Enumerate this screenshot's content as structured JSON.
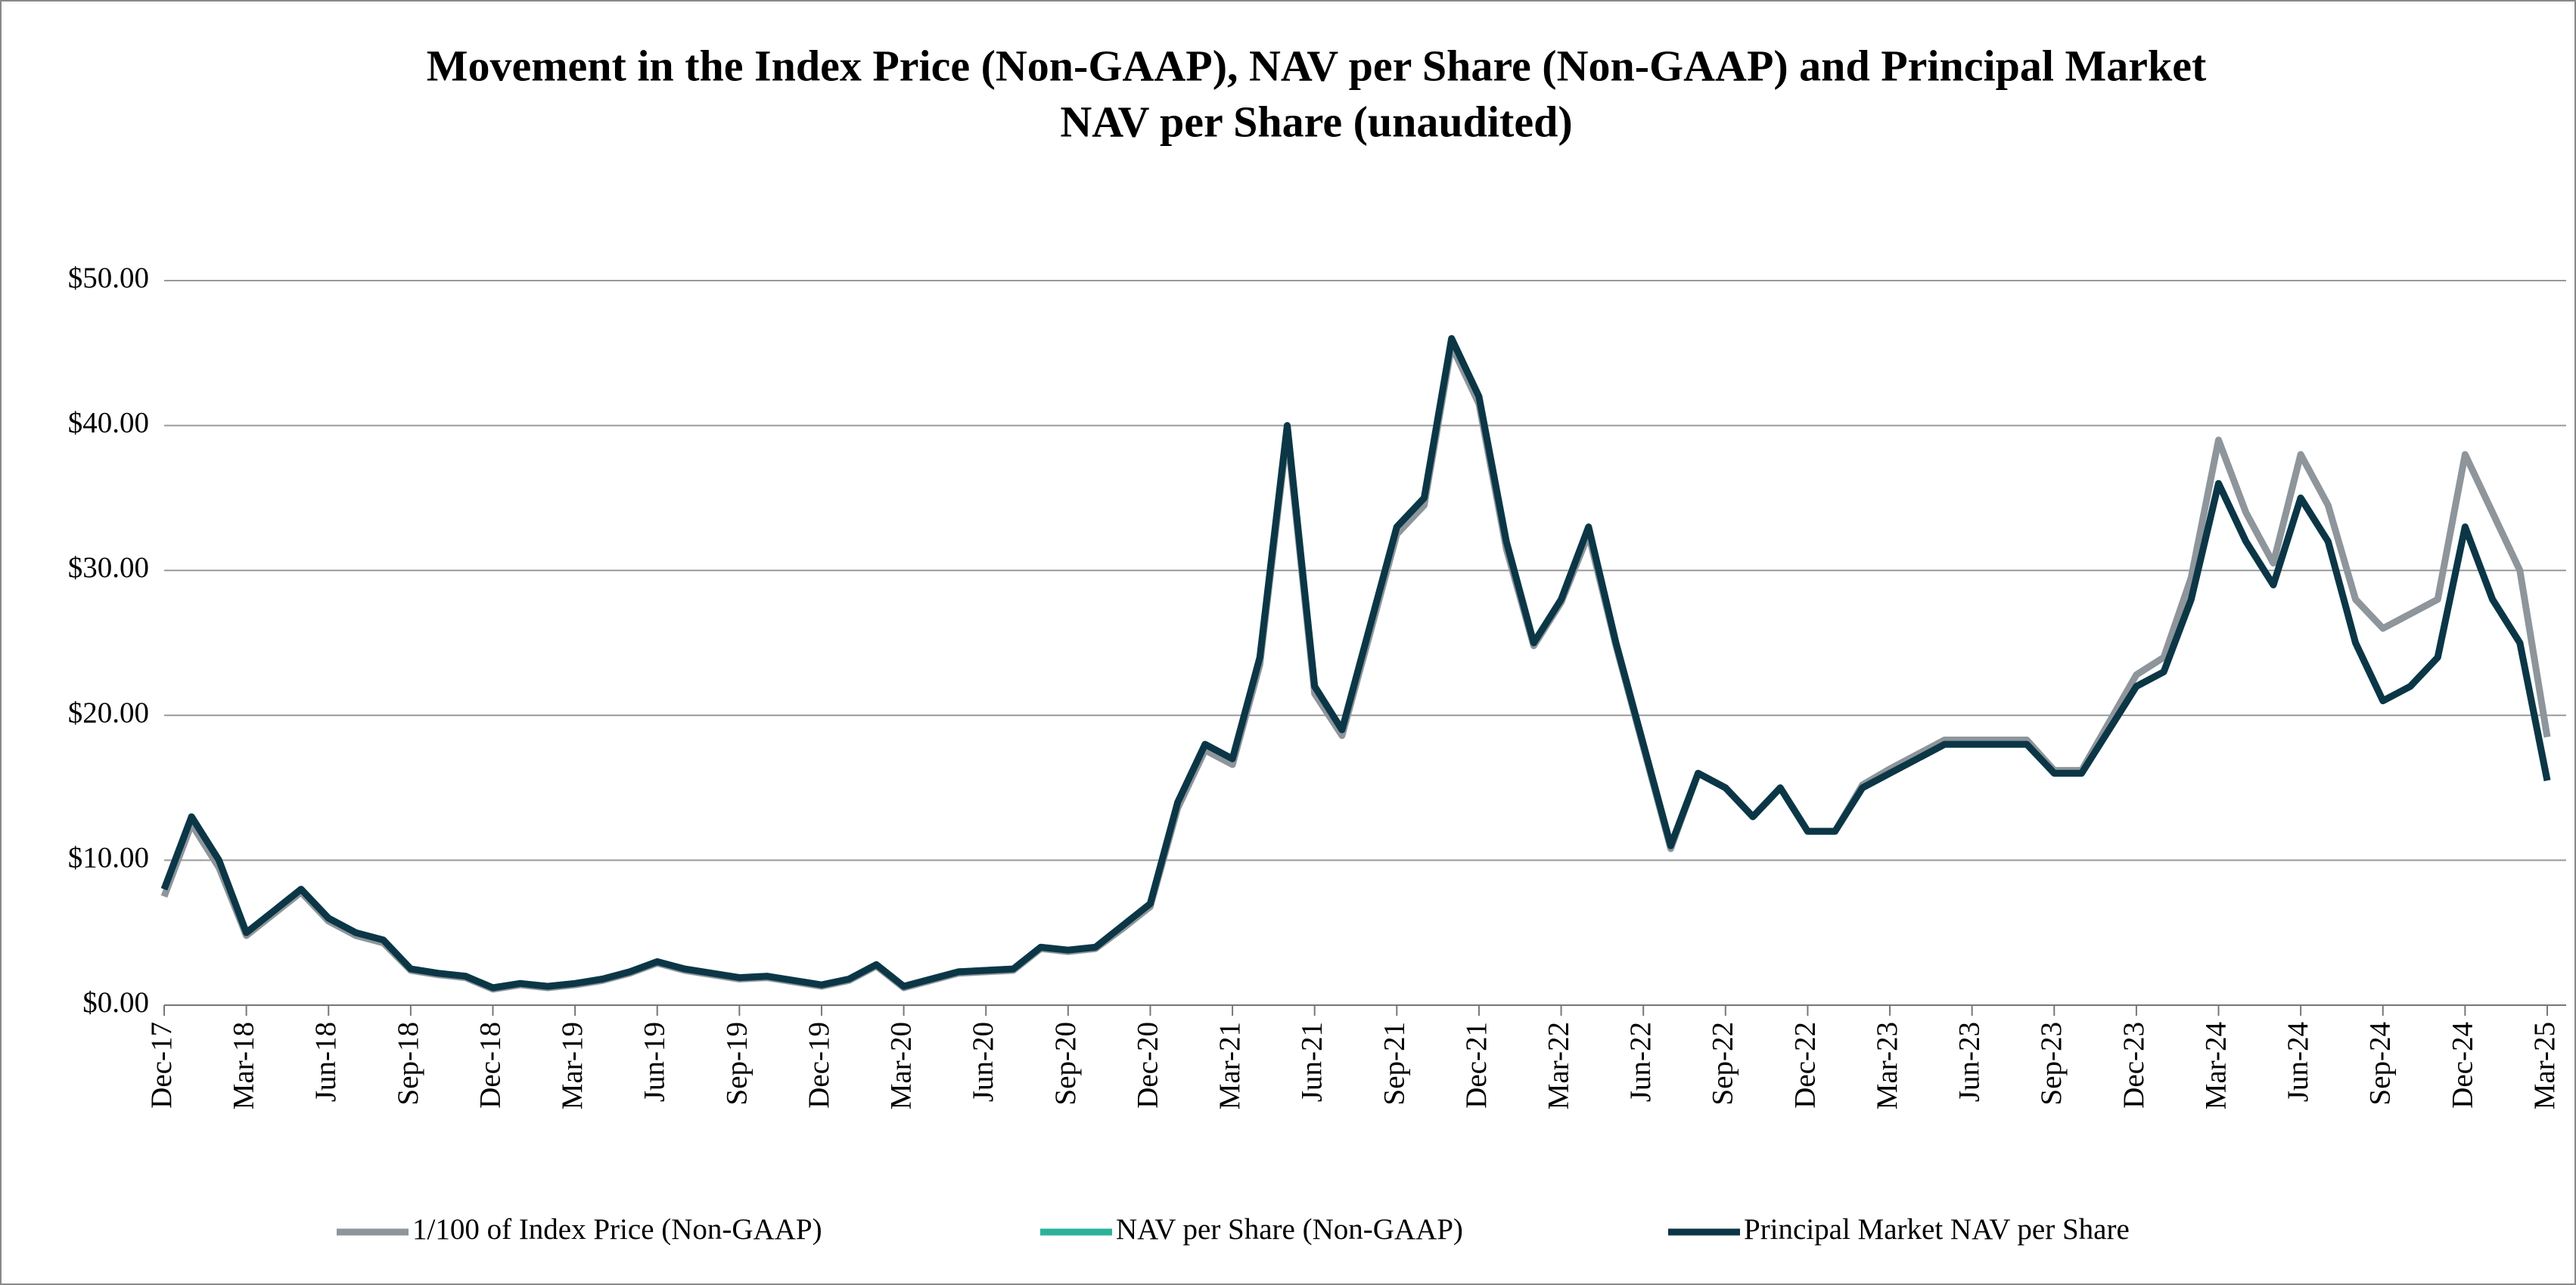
{
  "chart_data": {
    "type": "line",
    "title": "Movement in the Index Price (Non-GAAP), NAV per Share (Non-GAAP) and Principal Market",
    "subtitle": "NAV per Share (unaudited)",
    "categories": [
      "Dec-17",
      null,
      null,
      "Mar-18",
      null,
      null,
      "Jun-18",
      null,
      null,
      "Sep-18",
      null,
      null,
      "Dec-18",
      null,
      null,
      "Mar-19",
      null,
      null,
      "Jun-19",
      null,
      null,
      "Sep-19",
      null,
      null,
      "Dec-19",
      null,
      null,
      "Mar-20",
      null,
      null,
      "Jun-20",
      null,
      null,
      "Sep-20",
      null,
      null,
      "Dec-20",
      null,
      null,
      "Mar-21",
      null,
      null,
      "Jun-21",
      null,
      null,
      "Sep-21",
      null,
      null,
      "Dec-21",
      null,
      null,
      "Mar-22",
      null,
      null,
      "Jun-22",
      null,
      null,
      "Sep-22",
      null,
      null,
      "Dec-22",
      null,
      null,
      "Mar-23",
      null,
      null,
      "Jun-23",
      null,
      null,
      "Sep-23",
      null,
      null,
      "Dec-23",
      null,
      null,
      "Mar-24",
      null,
      null,
      "Jun-24",
      null,
      null,
      "Sep-24",
      null,
      null,
      "Dec-24",
      null,
      null,
      "Mar-25"
    ],
    "series": [
      {
        "name": "1/100 of Index Price (Non-GAAP)",
        "color": "#8e959b",
        "values": [
          7.5,
          12.5,
          9.5,
          4.8,
          6.3,
          7.8,
          5.8,
          4.8,
          4.3,
          2.4,
          2.1,
          1.9,
          1.1,
          1.4,
          1.2,
          1.4,
          1.7,
          2.2,
          2.9,
          2.4,
          2.1,
          1.8,
          1.9,
          1.6,
          1.3,
          1.7,
          2.7,
          1.2,
          1.7,
          2.2,
          2.3,
          2.4,
          3.9,
          3.7,
          3.9,
          5.3,
          6.8,
          13.6,
          17.6,
          16.6,
          23.5,
          39.5,
          21.5,
          18.6,
          25.5,
          32.5,
          34.5,
          45.5,
          41.5,
          31.5,
          24.8,
          27.8,
          32.5,
          24.8,
          17.8,
          10.8,
          16,
          15,
          13,
          15,
          12,
          12,
          15.2,
          16.3,
          17.3,
          18.3,
          18.3,
          18.3,
          18.3,
          16.2,
          16.2,
          19.5,
          22.8,
          24,
          29.5,
          39,
          34,
          30.5,
          38,
          34.5,
          28,
          26,
          27,
          28,
          38,
          34,
          30,
          18.5
        ]
      },
      {
        "name": "NAV per Share (Non-GAAP)",
        "color": "#2bb39a",
        "values": [
          8,
          13,
          10,
          5,
          6.5,
          8,
          6,
          5,
          4.5,
          2.5,
          2.2,
          2,
          1.2,
          1.5,
          1.3,
          1.5,
          1.8,
          2.3,
          3,
          2.5,
          2.2,
          1.9,
          2,
          1.7,
          1.4,
          1.8,
          2.8,
          1.3,
          1.8,
          2.3,
          2.4,
          2.5,
          4,
          3.8,
          4,
          5.5,
          7,
          14,
          18,
          17,
          24,
          40,
          22,
          19,
          26,
          33,
          35,
          46,
          42,
          32,
          25,
          28,
          33,
          25,
          18,
          11,
          16,
          15,
          13,
          15,
          12,
          12,
          15,
          16,
          17,
          18,
          18,
          18,
          18,
          16,
          16,
          19,
          22,
          23,
          28,
          36,
          32,
          29,
          35,
          32,
          25,
          21,
          22,
          24,
          33,
          28,
          25,
          15.5
        ]
      },
      {
        "name": "Principal Market NAV per Share",
        "color": "#0c3646",
        "values": [
          8,
          13,
          10,
          5,
          6.5,
          8,
          6,
          5,
          4.5,
          2.5,
          2.2,
          2,
          1.2,
          1.5,
          1.3,
          1.5,
          1.8,
          2.3,
          3,
          2.5,
          2.2,
          1.9,
          2,
          1.7,
          1.4,
          1.8,
          2.8,
          1.3,
          1.8,
          2.3,
          2.4,
          2.5,
          4,
          3.8,
          4,
          5.5,
          7,
          14,
          18,
          17,
          24,
          40,
          22,
          19,
          26,
          33,
          35,
          46,
          42,
          32,
          25,
          28,
          33,
          25,
          18,
          11,
          16,
          15,
          13,
          15,
          12,
          12,
          15,
          16,
          17,
          18,
          18,
          18,
          18,
          16,
          16,
          19,
          22,
          23,
          28,
          36,
          32,
          29,
          35,
          32,
          25,
          21,
          22,
          24,
          33,
          28,
          25,
          15.5
        ]
      }
    ],
    "ylim": [
      0,
      50
    ],
    "yticks": [
      {
        "value": 0,
        "label": "$0.00"
      },
      {
        "value": 10,
        "label": "$10.00"
      },
      {
        "value": 20,
        "label": "$20.00"
      },
      {
        "value": 30,
        "label": "$30.00"
      },
      {
        "value": 40,
        "label": "$40.00"
      },
      {
        "value": 50,
        "label": "$50.00"
      }
    ],
    "grid": true
  }
}
